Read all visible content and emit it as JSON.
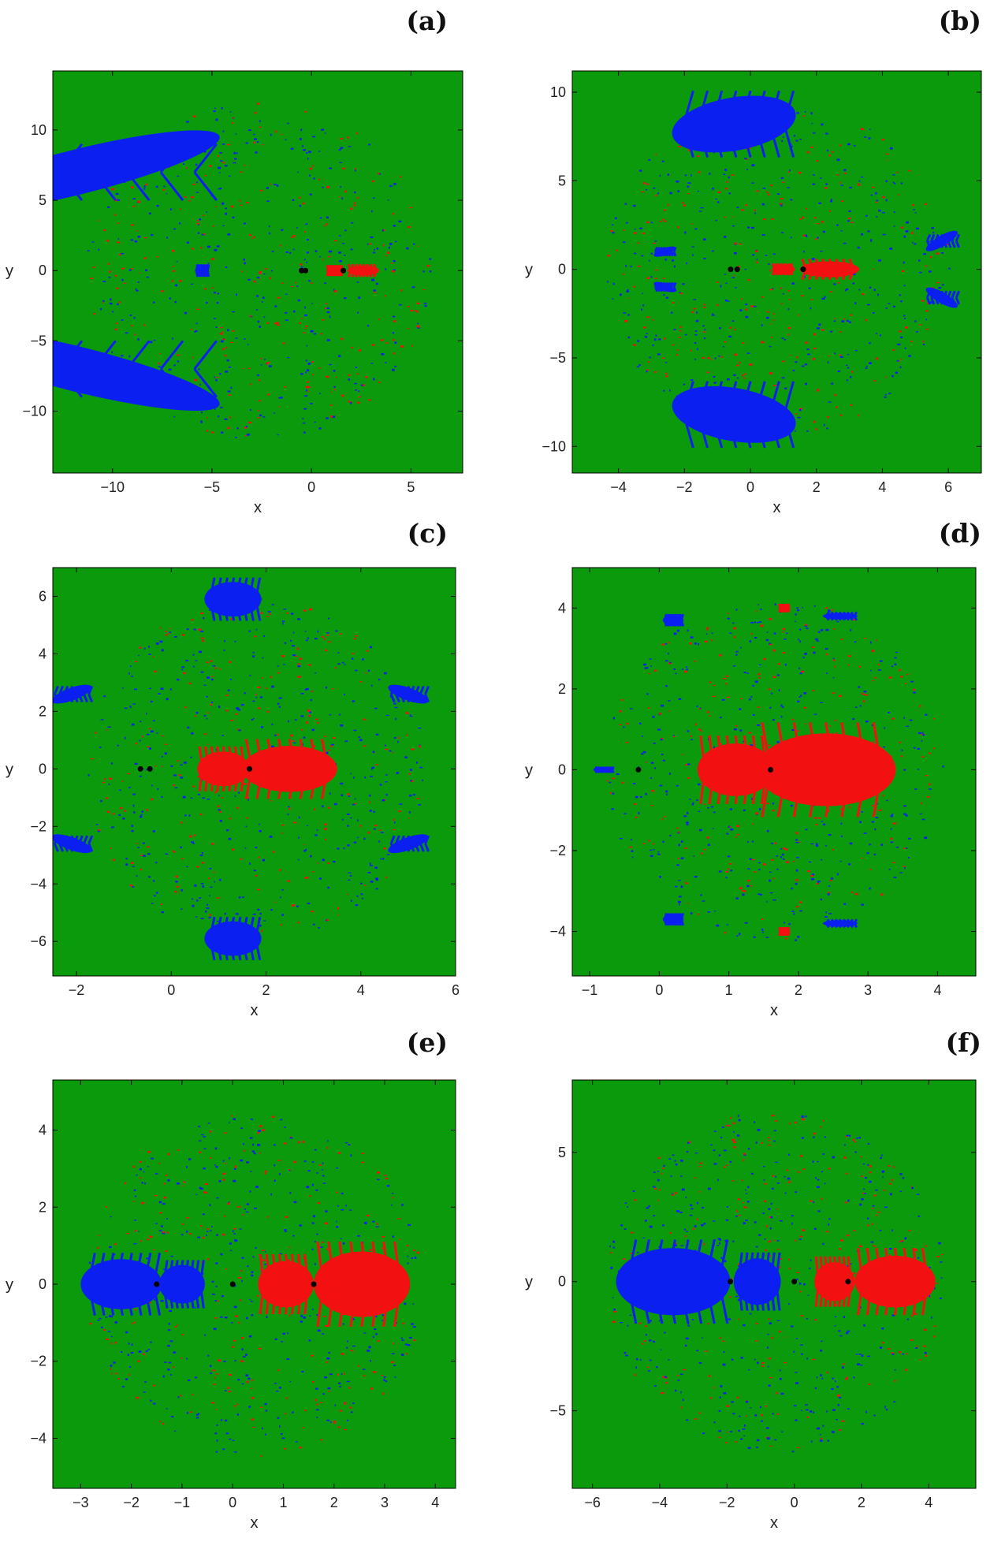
{
  "colors": {
    "green": "#0b9a0b",
    "blue": "#0b1ff0",
    "red": "#f21010",
    "black": "#000000",
    "frame": "#000000"
  },
  "panels": [
    {
      "label": "(a)",
      "xlabel": "x",
      "ylabel": "y",
      "xlim": [
        -13,
        7.6
      ],
      "ylim": [
        -14.4,
        14.2
      ],
      "xticks": [
        -10,
        -5,
        0,
        5
      ],
      "yticks": [
        -10,
        -5,
        0,
        5,
        10
      ],
      "blue": [
        [
          -11.8,
          7.0,
          7.4,
          1.6,
          -14
        ],
        [
          -11.8,
          -7.0,
          7.4,
          1.6,
          14
        ],
        [
          -5.5,
          0,
          0.35,
          0.35,
          0
        ]
      ],
      "red": [
        [
          2.6,
          0,
          0.8,
          0.35,
          0
        ],
        [
          1.2,
          0,
          0.45,
          0.3,
          0
        ]
      ],
      "points": [
        [
          -0.5,
          0
        ],
        [
          -0.3,
          0
        ],
        [
          1.6,
          0
        ]
      ]
    },
    {
      "label": "(b)",
      "xlabel": "x",
      "ylabel": "y",
      "xlim": [
        -5.4,
        7.0
      ],
      "ylim": [
        -11.5,
        11.2
      ],
      "xticks": [
        -4,
        -2,
        0,
        2,
        4,
        6
      ],
      "yticks": [
        -10,
        -5,
        0,
        5,
        10
      ],
      "blue": [
        [
          -0.5,
          8.2,
          1.9,
          1.5,
          -10
        ],
        [
          -0.5,
          -8.2,
          1.9,
          1.5,
          10
        ],
        [
          5.8,
          1.6,
          0.55,
          0.3,
          -30
        ],
        [
          5.8,
          -1.6,
          0.55,
          0.3,
          30
        ],
        [
          -2.6,
          1.0,
          0.35,
          0.2,
          -20
        ],
        [
          -2.6,
          -1.0,
          0.35,
          0.2,
          20
        ]
      ],
      "red": [
        [
          2.4,
          0,
          0.9,
          0.45,
          0
        ],
        [
          1.0,
          0,
          0.35,
          0.25,
          0
        ]
      ],
      "points": [
        [
          -0.6,
          0
        ],
        [
          -0.4,
          0
        ],
        [
          1.6,
          0
        ]
      ]
    },
    {
      "label": "(c)",
      "xlabel": "x",
      "ylabel": "y",
      "xlim": [
        -2.5,
        6.0
      ],
      "ylim": [
        -7.2,
        7.0
      ],
      "xticks": [
        -2,
        0,
        2,
        4,
        6
      ],
      "yticks": [
        -6,
        -4,
        -2,
        0,
        2,
        4,
        6
      ],
      "blue": [
        [
          1.3,
          5.9,
          0.6,
          0.6,
          0
        ],
        [
          1.3,
          -5.9,
          0.6,
          0.6,
          0
        ],
        [
          -2.1,
          2.6,
          0.45,
          0.22,
          -20
        ],
        [
          -2.1,
          -2.6,
          0.45,
          0.22,
          20
        ],
        [
          5.0,
          2.6,
          0.45,
          0.22,
          20
        ],
        [
          5.0,
          -2.6,
          0.45,
          0.22,
          -20
        ]
      ],
      "red": [
        [
          2.5,
          0,
          1.0,
          0.8,
          0
        ],
        [
          1.1,
          0,
          0.55,
          0.6,
          0
        ]
      ],
      "points": [
        [
          -0.65,
          0
        ],
        [
          -0.45,
          0
        ],
        [
          1.65,
          0
        ]
      ]
    },
    {
      "label": "(d)",
      "xlabel": "x",
      "ylabel": "y",
      "xlim": [
        -1.25,
        4.55
      ],
      "ylim": [
        -5.1,
        5.0
      ],
      "xticks": [
        -1,
        0,
        1,
        2,
        3,
        4
      ],
      "yticks": [
        -4,
        -2,
        0,
        2,
        4
      ],
      "blue": [
        [
          0.2,
          3.7,
          0.15,
          0.12,
          0
        ],
        [
          0.2,
          -3.7,
          0.15,
          0.12,
          0
        ],
        [
          2.6,
          3.8,
          0.25,
          0.08,
          0
        ],
        [
          2.6,
          -3.8,
          0.25,
          0.08,
          0
        ],
        [
          -0.8,
          0,
          0.15,
          0.06,
          0
        ]
      ],
      "red": [
        [
          2.4,
          0,
          1.0,
          0.9,
          0
        ],
        [
          1.1,
          0,
          0.55,
          0.65,
          0
        ],
        [
          1.8,
          4.0,
          0.08,
          0.08,
          0
        ],
        [
          1.8,
          -4.0,
          0.08,
          0.08,
          0
        ]
      ],
      "points": [
        [
          -0.3,
          0
        ],
        [
          1.6,
          0
        ]
      ]
    },
    {
      "label": "(e)",
      "xlabel": "x",
      "ylabel": "y",
      "xlim": [
        -3.55,
        4.4
      ],
      "ylim": [
        -5.3,
        5.3
      ],
      "xticks": [
        -3,
        -2,
        -1,
        0,
        1,
        2,
        3,
        4
      ],
      "yticks": [
        -4,
        -2,
        0,
        2,
        4
      ],
      "blue": [
        [
          -2.2,
          0,
          0.8,
          0.65,
          0
        ],
        [
          -1.0,
          0,
          0.45,
          0.5,
          0
        ]
      ],
      "red": [
        [
          2.55,
          0,
          0.95,
          0.85,
          0
        ],
        [
          1.05,
          0,
          0.55,
          0.6,
          0
        ]
      ],
      "points": [
        [
          -1.5,
          0
        ],
        [
          0,
          0
        ],
        [
          1.6,
          0
        ]
      ]
    },
    {
      "label": "(f)",
      "xlabel": "x",
      "ylabel": "y",
      "xlim": [
        -6.6,
        5.4
      ],
      "ylim": [
        -8.0,
        7.8
      ],
      "xticks": [
        -6,
        -4,
        -2,
        0,
        2,
        4
      ],
      "yticks": [
        -5,
        0,
        5
      ],
      "blue": [
        [
          -3.6,
          0,
          1.7,
          1.3,
          0
        ],
        [
          -1.1,
          0,
          0.7,
          0.9,
          0
        ]
      ],
      "red": [
        [
          3.0,
          0,
          1.2,
          1.0,
          0
        ],
        [
          1.2,
          0,
          0.6,
          0.75,
          0
        ]
      ],
      "points": [
        [
          -1.9,
          0
        ],
        [
          0,
          0
        ],
        [
          1.6,
          0
        ]
      ]
    }
  ]
}
